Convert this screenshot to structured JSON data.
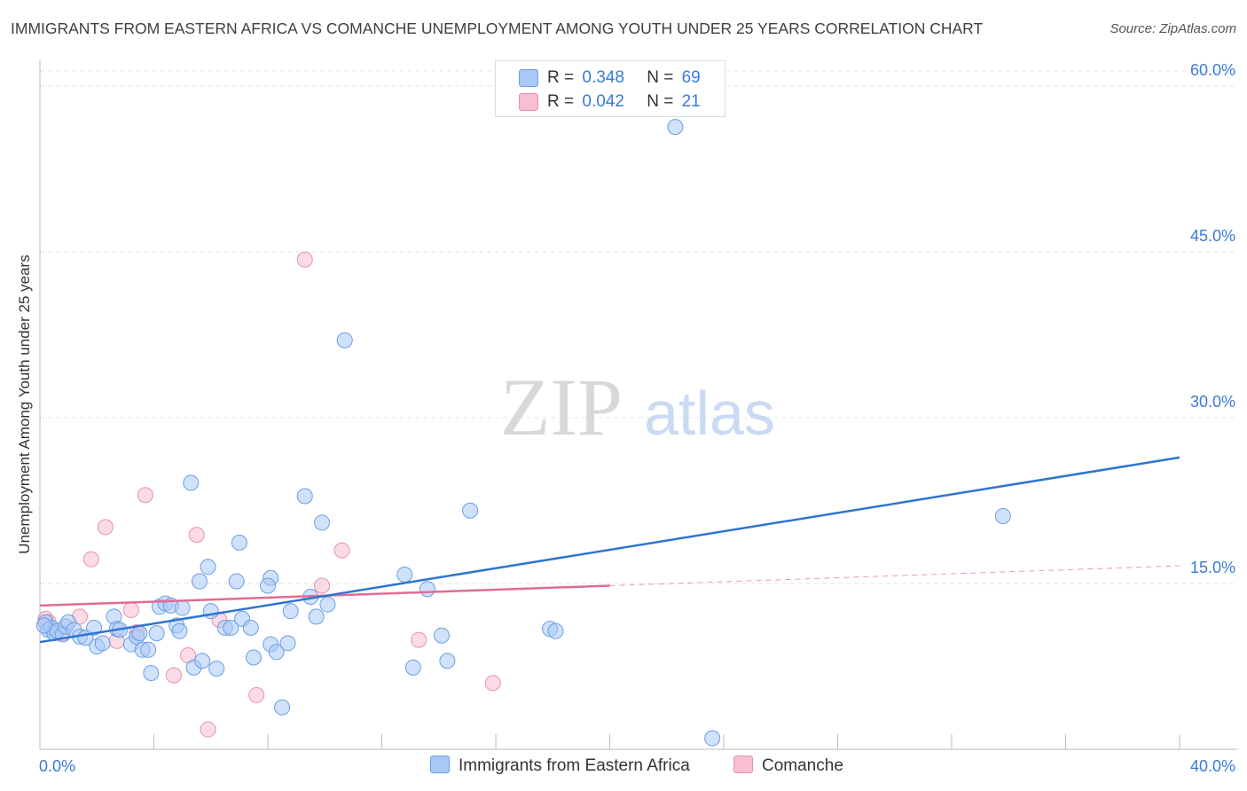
{
  "title": "IMMIGRANTS FROM EASTERN AFRICA VS COMANCHE UNEMPLOYMENT AMONG YOUTH UNDER 25 YEARS CORRELATION CHART",
  "source": "Source: ZipAtlas.com",
  "watermark": {
    "zip": "ZIP",
    "atlas": "atlas"
  },
  "legend": {
    "series1": {
      "r_label": "R =",
      "r_value": "0.348",
      "n_label": "N =",
      "n_value": "69"
    },
    "series2": {
      "r_label": "R =",
      "r_value": "0.042",
      "n_label": "N =",
      "n_value": "21"
    }
  },
  "bottom_legend": {
    "series1": "Immigrants from Eastern Africa",
    "series2": "Comanche"
  },
  "colors": {
    "blue_fill": "#a9c8f5",
    "blue_stroke": "#6a9fe3",
    "blue_line": "#2f74d0",
    "pink_fill": "#f7bfd0",
    "pink_stroke": "#ea8fae",
    "pink_line": "#e06b94",
    "grid": "#e3e3e3",
    "tick_text": "#3a7ad8"
  },
  "chart_data": {
    "type": "scatter",
    "title": "IMMIGRANTS FROM EASTERN AFRICA VS COMANCHE UNEMPLOYMENT AMONG YOUTH UNDER 25 YEARS CORRELATION CHART",
    "xlabel": "",
    "ylabel": "Unemployment Among Youth under 25 years",
    "xlim": [
      0,
      40
    ],
    "ylim": [
      0,
      60
    ],
    "x_tick_labels": [
      "0.0%",
      "40.0%"
    ],
    "y_ticks": [
      15,
      30,
      45,
      60
    ],
    "y_tick_labels": [
      "15.0%",
      "30.0%",
      "45.0%",
      "60.0%"
    ],
    "grid": true,
    "series": [
      {
        "name": "Immigrants from Eastern Africa",
        "color": "#a9c8f5",
        "r": 0.348,
        "n": 69,
        "trend": {
          "x": [
            0,
            40
          ],
          "y": [
            9.7,
            26.4
          ]
        },
        "points": [
          [
            0.2,
            11.5
          ],
          [
            0.3,
            10.8
          ],
          [
            0.4,
            11.0
          ],
          [
            0.5,
            10.5
          ],
          [
            0.6,
            10.7
          ],
          [
            0.8,
            10.4
          ],
          [
            0.9,
            11.1
          ],
          [
            1.0,
            11.5
          ],
          [
            1.2,
            10.8
          ],
          [
            1.4,
            10.2
          ],
          [
            1.6,
            10.1
          ],
          [
            1.9,
            11.0
          ],
          [
            2.0,
            9.3
          ],
          [
            2.2,
            9.6
          ],
          [
            2.6,
            12.0
          ],
          [
            2.7,
            10.9
          ],
          [
            2.8,
            10.8
          ],
          [
            3.2,
            9.5
          ],
          [
            3.4,
            10.2
          ],
          [
            3.5,
            10.5
          ],
          [
            3.6,
            9.0
          ],
          [
            3.8,
            9.0
          ],
          [
            3.9,
            6.9
          ],
          [
            4.1,
            10.5
          ],
          [
            4.2,
            12.9
          ],
          [
            4.4,
            13.2
          ],
          [
            4.6,
            13.0
          ],
          [
            4.8,
            11.2
          ],
          [
            4.9,
            10.7
          ],
          [
            5.0,
            12.8
          ],
          [
            5.3,
            24.1
          ],
          [
            5.4,
            7.4
          ],
          [
            5.6,
            15.2
          ],
          [
            5.7,
            8.0
          ],
          [
            5.9,
            16.5
          ],
          [
            6.0,
            12.5
          ],
          [
            6.2,
            7.3
          ],
          [
            6.5,
            11.0
          ],
          [
            6.7,
            11.0
          ],
          [
            6.9,
            15.2
          ],
          [
            7.0,
            18.7
          ],
          [
            7.1,
            11.8
          ],
          [
            7.4,
            11.0
          ],
          [
            7.5,
            8.3
          ],
          [
            8.1,
            15.5
          ],
          [
            8.0,
            14.8
          ],
          [
            8.1,
            9.5
          ],
          [
            8.3,
            8.8
          ],
          [
            8.5,
            3.8
          ],
          [
            8.7,
            9.6
          ],
          [
            8.8,
            12.5
          ],
          [
            9.3,
            22.9
          ],
          [
            9.5,
            13.8
          ],
          [
            9.7,
            12.0
          ],
          [
            9.9,
            20.5
          ],
          [
            10.1,
            13.1
          ],
          [
            10.7,
            37.0
          ],
          [
            12.8,
            15.8
          ],
          [
            13.1,
            7.4
          ],
          [
            13.6,
            14.5
          ],
          [
            14.1,
            10.3
          ],
          [
            14.3,
            8.0
          ],
          [
            15.1,
            21.6
          ],
          [
            17.9,
            10.9
          ],
          [
            18.1,
            10.7
          ],
          [
            22.3,
            56.3
          ],
          [
            23.6,
            1.0
          ],
          [
            33.8,
            21.1
          ],
          [
            0.15,
            11.2
          ]
        ]
      },
      {
        "name": "Comanche",
        "color": "#f7bfd0",
        "r": 0.042,
        "n": 21,
        "trend_solid": {
          "x": [
            0,
            20
          ],
          "y": [
            13.0,
            14.8
          ]
        },
        "trend_dashed": {
          "x": [
            20,
            40
          ],
          "y": [
            14.8,
            16.6
          ]
        },
        "points": [
          [
            0.2,
            11.8
          ],
          [
            0.3,
            11.5
          ],
          [
            0.8,
            10.5
          ],
          [
            1.4,
            12.0
          ],
          [
            1.8,
            17.2
          ],
          [
            2.3,
            20.1
          ],
          [
            2.7,
            9.8
          ],
          [
            3.2,
            12.6
          ],
          [
            3.4,
            10.6
          ],
          [
            3.7,
            23.0
          ],
          [
            4.7,
            6.7
          ],
          [
            5.2,
            8.5
          ],
          [
            5.5,
            19.4
          ],
          [
            5.9,
            1.8
          ],
          [
            6.3,
            11.7
          ],
          [
            7.6,
            4.9
          ],
          [
            9.3,
            44.3
          ],
          [
            9.9,
            14.8
          ],
          [
            10.6,
            18.0
          ],
          [
            13.3,
            9.9
          ],
          [
            15.9,
            6.0
          ]
        ]
      }
    ]
  }
}
